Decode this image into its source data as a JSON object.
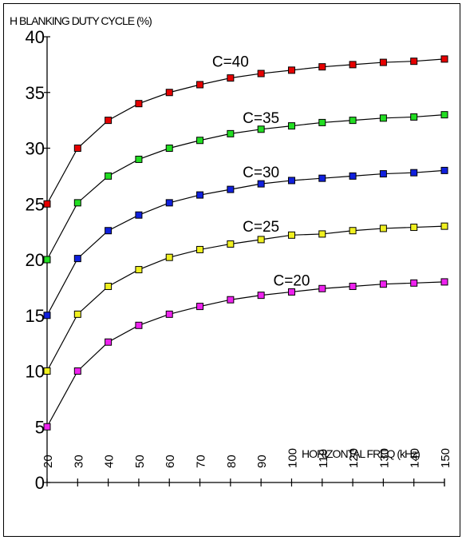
{
  "chart_data": {
    "type": "line",
    "title": "",
    "ylabel": "H BLANKING DUTY CYCLE (%)",
    "xlabel": "HORIZONTAL FREQ (kHz)",
    "x": [
      20,
      30,
      40,
      50,
      60,
      70,
      80,
      90,
      100,
      110,
      120,
      130,
      140,
      150
    ],
    "x_tick_labels": [
      "20",
      "30",
      "40",
      "50",
      "60",
      "70",
      "80",
      "90",
      "100",
      "110",
      "120",
      "130",
      "140",
      "150"
    ],
    "y_ticks": [
      0,
      5,
      10,
      15,
      20,
      25,
      30,
      35,
      40
    ],
    "y_tick_labels": [
      "0",
      "5",
      "10",
      "15",
      "20",
      "25",
      "30",
      "35",
      "40"
    ],
    "xlim": [
      20,
      150
    ],
    "ylim": [
      0,
      40
    ],
    "grid": false,
    "series": [
      {
        "name": "C=40",
        "color": "#e60000",
        "values": [
          25,
          30,
          32.5,
          34,
          35,
          35.7,
          36.3,
          36.7,
          37,
          37.3,
          37.5,
          37.7,
          37.8,
          38
        ]
      },
      {
        "name": "C=35",
        "color": "#22dd22",
        "values": [
          20,
          25.1,
          27.5,
          29,
          30,
          30.7,
          31.3,
          31.7,
          32,
          32.3,
          32.5,
          32.7,
          32.8,
          33
        ]
      },
      {
        "name": "C=30",
        "color": "#1020dd",
        "values": [
          15,
          20.1,
          22.6,
          24,
          25.1,
          25.8,
          26.3,
          26.8,
          27.1,
          27.3,
          27.5,
          27.7,
          27.8,
          28
        ]
      },
      {
        "name": "C=25",
        "color": "#f0f020",
        "values": [
          10,
          15.1,
          17.6,
          19.1,
          20.2,
          20.9,
          21.4,
          21.8,
          22.2,
          22.3,
          22.6,
          22.8,
          22.9,
          23
        ]
      },
      {
        "name": "C=20",
        "color": "#ee22ee",
        "values": [
          5,
          10,
          12.6,
          14.1,
          15.1,
          15.8,
          16.4,
          16.8,
          17.1,
          17.4,
          17.6,
          17.8,
          17.9,
          18
        ]
      }
    ]
  }
}
